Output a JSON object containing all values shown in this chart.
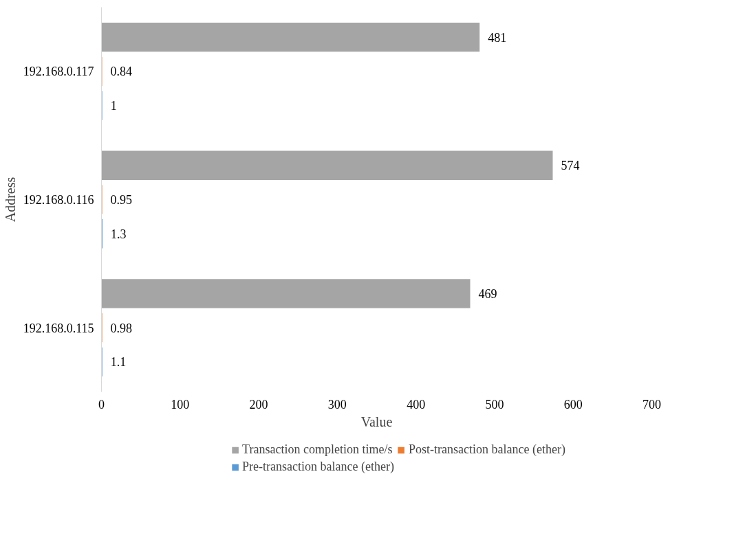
{
  "chart_data": {
    "type": "bar",
    "orientation": "horizontal",
    "xlabel": "Value",
    "ylabel": "Address",
    "categories": [
      "192.168.0.117",
      "192.168.0.116",
      "192.168.0.115"
    ],
    "series": [
      {
        "name": "Transaction completion time/s",
        "color": "#a5a5a5",
        "values": [
          481,
          574,
          469
        ]
      },
      {
        "name": "Post-transaction balance (ether)",
        "color": "#ed7d31",
        "values": [
          0.84,
          0.95,
          0.98
        ]
      },
      {
        "name": "Pre-transaction balance (ether)",
        "color": "#5b9bd5",
        "values": [
          1,
          1.3,
          1.1
        ]
      }
    ],
    "xlim": [
      0,
      700
    ],
    "xticks": [
      0,
      100,
      200,
      300,
      400,
      500,
      600,
      700
    ],
    "data_labels": true,
    "grid": false,
    "legend": "bottom"
  }
}
